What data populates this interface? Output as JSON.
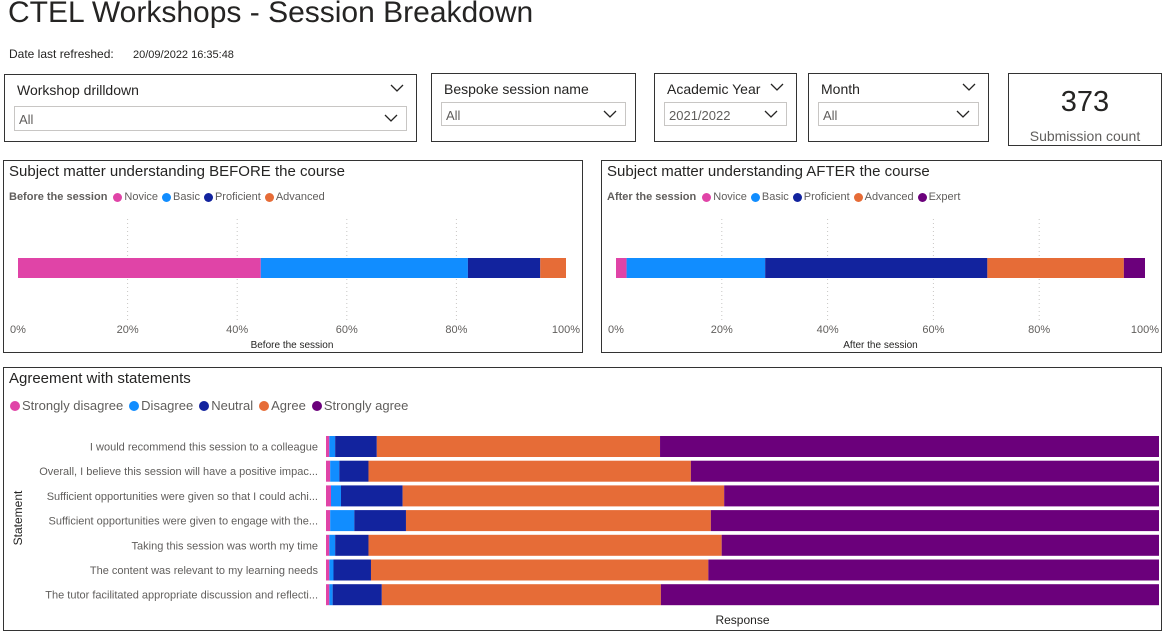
{
  "page": {
    "title": "CTEL Workshops - Session Breakdown",
    "refresh_label": "Date last refreshed:",
    "refresh_value": "20/09/2022 16:35:48"
  },
  "slicers": [
    {
      "title": "Workshop drilldown",
      "value": "All"
    },
    {
      "title": "Bespoke session name",
      "value": "All"
    },
    {
      "title": "Academic Year",
      "value": "2021/2022"
    },
    {
      "title": "Month",
      "value": "All"
    }
  ],
  "card": {
    "value": "373",
    "label": "Submission count"
  },
  "colors": {
    "novice": "#e044a7",
    "basic": "#118dff",
    "proficient": "#12239e",
    "advanced": "#e66c37",
    "expert": "#6b007b",
    "strongly_disagree": "#e044a7",
    "disagree": "#118dff",
    "neutral": "#12239e",
    "agree": "#e66c37",
    "strongly_agree": "#6b007b"
  },
  "chart_data": [
    {
      "type": "bar",
      "orientation": "horizontal-100%-stacked",
      "title": "Subject matter understanding BEFORE the course",
      "legend_title": "Before the session",
      "categories": [
        "Before the session"
      ],
      "series": [
        {
          "name": "Novice",
          "color": "#e044a7",
          "values": [
            44.3
          ]
        },
        {
          "name": "Basic",
          "color": "#118dff",
          "values": [
            37.8
          ]
        },
        {
          "name": "Proficient",
          "color": "#12239e",
          "values": [
            13.2
          ]
        },
        {
          "name": "Advanced",
          "color": "#e66c37",
          "values": [
            4.7
          ]
        }
      ],
      "xticks": [
        "0%",
        "20%",
        "40%",
        "60%",
        "80%",
        "100%"
      ],
      "xlabel": "Before the session",
      "xlim": [
        0,
        100
      ]
    },
    {
      "type": "bar",
      "orientation": "horizontal-100%-stacked",
      "title": "Subject matter understanding AFTER the course",
      "legend_title": "After the session",
      "categories": [
        "After the session"
      ],
      "series": [
        {
          "name": "Novice",
          "color": "#e044a7",
          "values": [
            2.0
          ]
        },
        {
          "name": "Basic",
          "color": "#118dff",
          "values": [
            26.2
          ]
        },
        {
          "name": "Proficient",
          "color": "#12239e",
          "values": [
            42.0
          ]
        },
        {
          "name": "Advanced",
          "color": "#e66c37",
          "values": [
            25.8
          ]
        },
        {
          "name": "Expert",
          "color": "#6b007b",
          "values": [
            4.0
          ]
        }
      ],
      "xticks": [
        "0%",
        "20%",
        "40%",
        "60%",
        "80%",
        "100%"
      ],
      "xlabel": "After the session",
      "xlim": [
        0,
        100
      ]
    },
    {
      "type": "bar",
      "orientation": "horizontal-100%-stacked",
      "title": "Agreement with statements",
      "ylabel": "Statement",
      "xlabel": "Response",
      "categories": [
        "I would recommend this session to a colleague",
        "Overall, I believe this session will have a positive impac...",
        "Sufficient opportunities were given so that I could achi...",
        "Sufficient opportunities were given to engage with the...",
        "Taking this session was worth my time",
        "The content was relevant to my learning needs",
        "The tutor facilitated appropriate discussion and reflecti..."
      ],
      "series": [
        {
          "name": "Strongly disagree",
          "color": "#e044a7",
          "values": [
            0.4,
            0.5,
            0.6,
            0.5,
            0.4,
            0.4,
            0.4
          ]
        },
        {
          "name": "Disagree",
          "color": "#118dff",
          "values": [
            0.7,
            1.1,
            1.2,
            2.9,
            0.7,
            0.5,
            0.4
          ]
        },
        {
          "name": "Neutral",
          "color": "#12239e",
          "values": [
            5.0,
            3.5,
            7.4,
            6.2,
            4.0,
            4.5,
            5.9
          ]
        },
        {
          "name": "Agree",
          "color": "#e66c37",
          "values": [
            34.0,
            38.7,
            38.6,
            36.6,
            42.4,
            40.5,
            33.5
          ]
        },
        {
          "name": "Strongly agree",
          "color": "#6b007b",
          "values": [
            59.9,
            56.2,
            52.2,
            53.8,
            52.5,
            54.1,
            59.8
          ]
        }
      ],
      "xlim": [
        0,
        100
      ]
    }
  ]
}
